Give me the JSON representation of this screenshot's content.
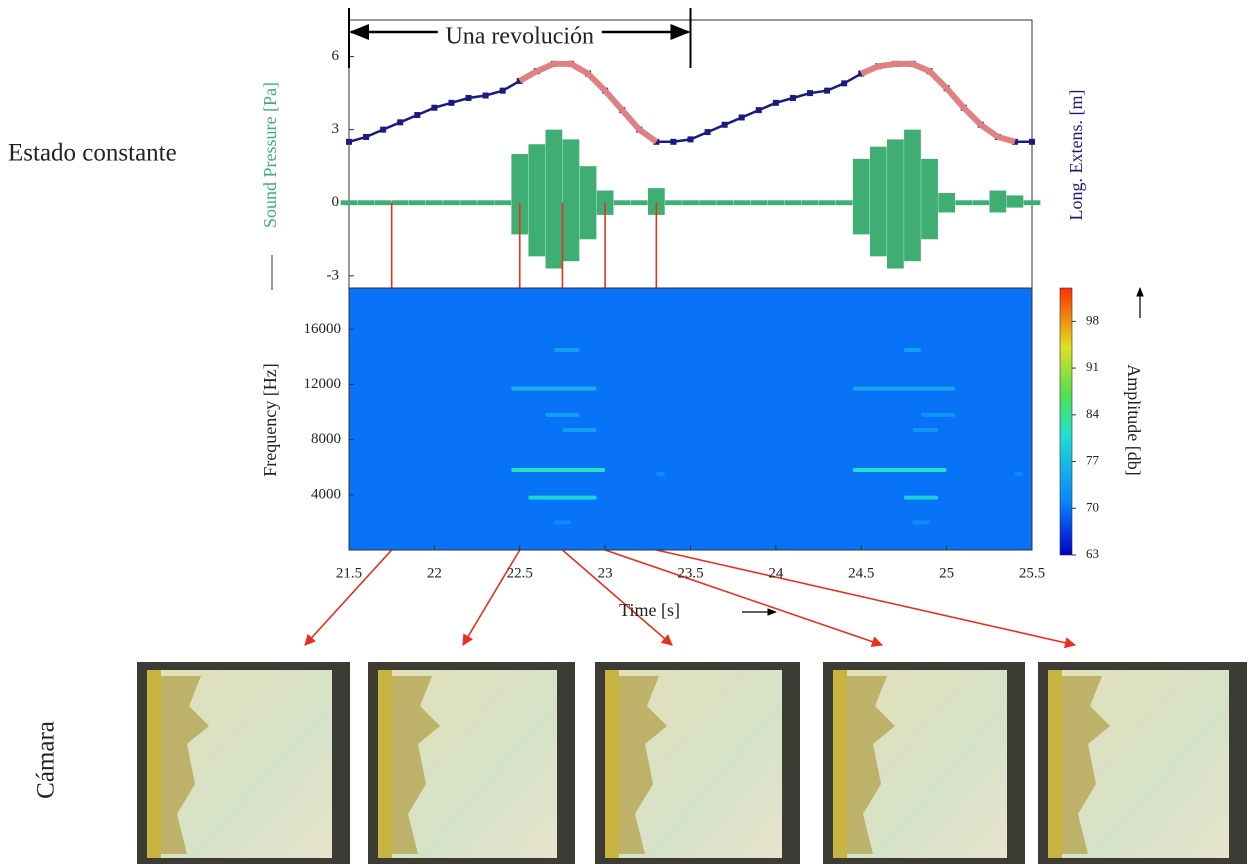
{
  "labels": {
    "steady": "Estado constante",
    "camera": "Cámara"
  },
  "frame_times": [
    21.75,
    22.5,
    22.75,
    23.0,
    23.3
  ],
  "chart_data": [
    {
      "type": "line",
      "ylabel": "Sound Pressure [Pa]",
      "y2label": "Long. Extens. [m]",
      "annotation": {
        "text": "Una revolución",
        "x0": 21.5,
        "x1": 23.5
      },
      "xlim": [
        21.5,
        25.5
      ],
      "ylim": [
        -3.5,
        7.5
      ],
      "yticks": [
        -3,
        0,
        3,
        6
      ],
      "y2lim": [
        -3.5,
        7.5
      ],
      "x": [
        21.5,
        21.6,
        21.7,
        21.8,
        21.9,
        22.0,
        22.1,
        22.2,
        22.3,
        22.4,
        22.5,
        22.6,
        22.7,
        22.8,
        22.9,
        23.0,
        23.1,
        23.2,
        23.3,
        23.4,
        23.5,
        23.6,
        23.7,
        23.8,
        23.9,
        24.0,
        24.1,
        24.2,
        24.3,
        24.4,
        24.5,
        24.6,
        24.7,
        24.8,
        24.9,
        25.0,
        25.1,
        25.2,
        25.3,
        25.4,
        25.5
      ],
      "sound": {
        "color": "#3fae72",
        "values": [
          0.1,
          0.1,
          0.1,
          0.1,
          0.1,
          0.1,
          0.1,
          0.1,
          0.1,
          0.1,
          2.0,
          2.4,
          3.0,
          2.6,
          1.5,
          0.5,
          0.1,
          0.1,
          0.6,
          0.1,
          0.1,
          0.1,
          0.1,
          0.1,
          0.1,
          0.1,
          0.1,
          0.1,
          0.1,
          0.1,
          1.8,
          2.3,
          2.6,
          3.0,
          1.8,
          0.4,
          0.1,
          0.1,
          0.5,
          0.3,
          0.1
        ],
        "lows": [
          -0.1,
          -0.1,
          -0.1,
          -0.1,
          -0.1,
          -0.1,
          -0.1,
          -0.1,
          -0.1,
          -0.1,
          -1.3,
          -2.2,
          -2.7,
          -2.4,
          -1.5,
          -0.5,
          -0.1,
          -0.1,
          -0.5,
          -0.1,
          -0.1,
          -0.1,
          -0.1,
          -0.1,
          -0.1,
          -0.1,
          -0.1,
          -0.1,
          -0.1,
          -0.1,
          -1.3,
          -2.2,
          -2.7,
          -2.4,
          -1.5,
          -0.4,
          -0.1,
          -0.1,
          -0.4,
          -0.2,
          -0.1
        ]
      },
      "series": [
        {
          "color": "#e08080",
          "axis": "y2",
          "values": [
            null,
            null,
            null,
            null,
            null,
            null,
            null,
            null,
            null,
            null,
            5.0,
            5.4,
            5.7,
            5.7,
            5.3,
            4.6,
            3.8,
            3.0,
            2.5,
            null,
            null,
            null,
            null,
            null,
            null,
            null,
            null,
            null,
            null,
            null,
            5.3,
            5.6,
            5.7,
            5.7,
            5.4,
            4.7,
            3.9,
            3.2,
            2.7,
            2.5,
            null
          ]
        },
        {
          "color": "#1a1a80",
          "axis": "y2",
          "values": [
            2.5,
            2.7,
            3.0,
            3.3,
            3.6,
            3.9,
            4.1,
            4.3,
            4.4,
            4.6,
            5.0,
            5.4,
            5.7,
            5.7,
            5.3,
            4.6,
            3.8,
            3.0,
            2.5,
            2.5,
            2.6,
            2.9,
            3.2,
            3.5,
            3.8,
            4.1,
            4.3,
            4.5,
            4.6,
            4.9,
            5.3,
            5.6,
            5.7,
            5.7,
            5.4,
            4.7,
            3.9,
            3.2,
            2.7,
            2.5,
            2.5
          ]
        }
      ]
    },
    {
      "type": "spectrogram",
      "ylabel": "Frequency [Hz]",
      "xlabel": "Time [s]",
      "clabel": "Amplitude [db]",
      "xlim": [
        21.5,
        25.5
      ],
      "xticks": [
        21.5,
        22,
        22.5,
        23,
        23.5,
        24,
        24.5,
        25,
        25.5
      ],
      "ylim": [
        0,
        19000
      ],
      "yticks": [
        4000,
        8000,
        12000,
        16000
      ],
      "clim": [
        63,
        103
      ],
      "cticks": [
        63,
        70,
        77,
        84,
        91,
        98
      ],
      "background_amplitude": 70,
      "bands": [
        {
          "x0": 22.7,
          "x1": 22.85,
          "freq": 14500,
          "amp": 74
        },
        {
          "x0": 22.45,
          "x1": 22.95,
          "freq": 11700,
          "amp": 76
        },
        {
          "x0": 22.65,
          "x1": 22.85,
          "freq": 9800,
          "amp": 74
        },
        {
          "x0": 22.75,
          "x1": 22.95,
          "freq": 8700,
          "amp": 74
        },
        {
          "x0": 22.45,
          "x1": 23.0,
          "freq": 5800,
          "amp": 82
        },
        {
          "x0": 22.55,
          "x1": 22.95,
          "freq": 3800,
          "amp": 80
        },
        {
          "x0": 22.7,
          "x1": 22.8,
          "freq": 2000,
          "amp": 72
        },
        {
          "x0": 23.3,
          "x1": 23.35,
          "freq": 5500,
          "amp": 72
        },
        {
          "x0": 24.75,
          "x1": 24.85,
          "freq": 14500,
          "amp": 74
        },
        {
          "x0": 24.45,
          "x1": 25.05,
          "freq": 11700,
          "amp": 75
        },
        {
          "x0": 24.85,
          "x1": 25.05,
          "freq": 9800,
          "amp": 73
        },
        {
          "x0": 24.8,
          "x1": 24.95,
          "freq": 8700,
          "amp": 73
        },
        {
          "x0": 24.45,
          "x1": 25.0,
          "freq": 5800,
          "amp": 81
        },
        {
          "x0": 24.75,
          "x1": 24.95,
          "freq": 3800,
          "amp": 79
        },
        {
          "x0": 24.8,
          "x1": 24.9,
          "freq": 2000,
          "amp": 72
        },
        {
          "x0": 25.4,
          "x1": 25.45,
          "freq": 5500,
          "amp": 72
        }
      ]
    }
  ]
}
